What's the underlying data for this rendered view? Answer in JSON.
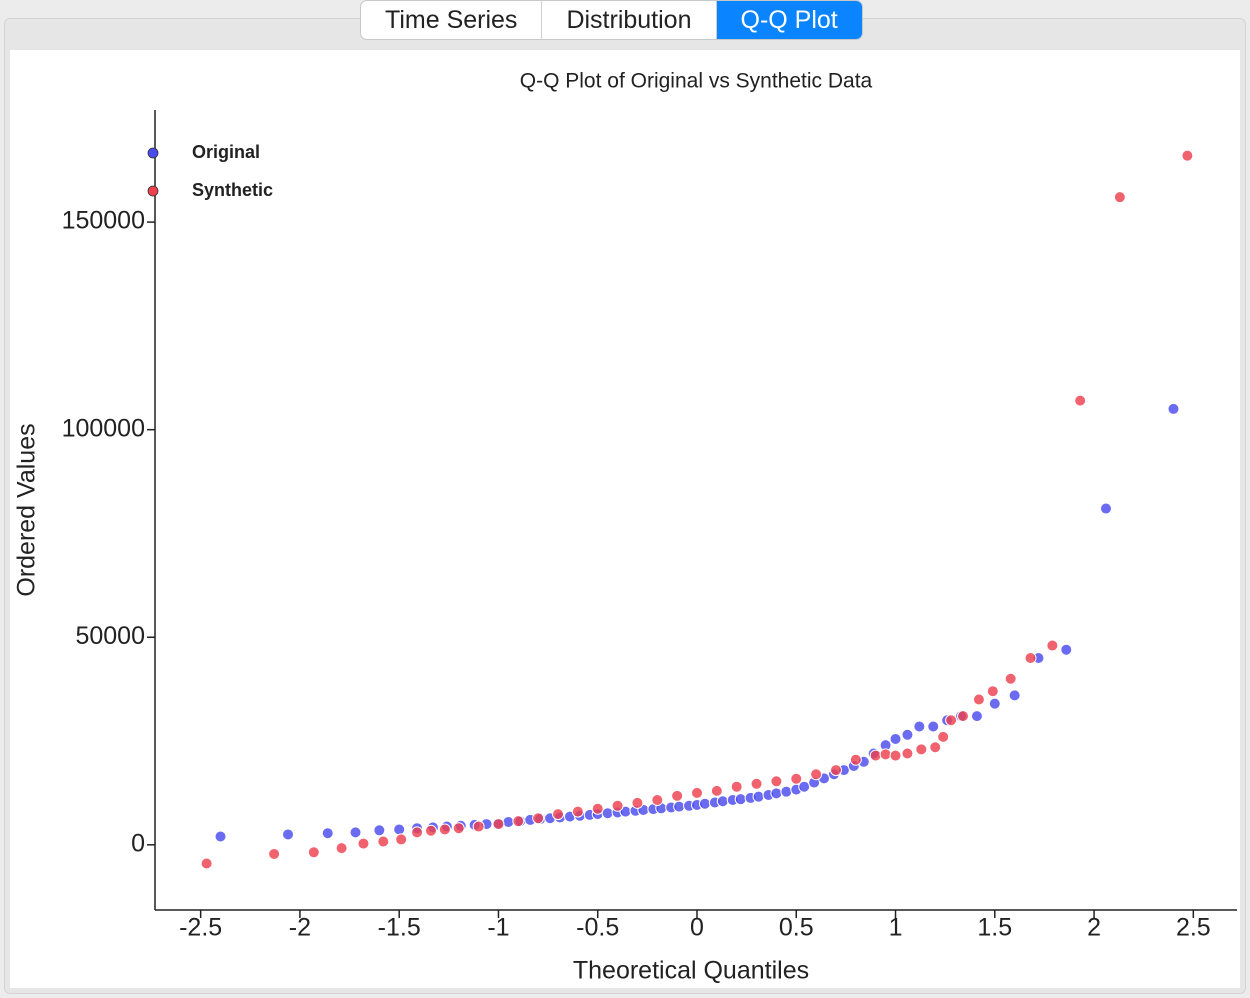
{
  "tabs": [
    "Time Series",
    "Distribution",
    "Q-Q Plot"
  ],
  "active_tab": 2,
  "chart_data": {
    "type": "scatter",
    "title": "Q-Q Plot of Original vs Synthetic Data",
    "x_label": "Theoretical Quantiles",
    "y_label": "Ordered Values",
    "xlim": [
      -2.73,
      2.72
    ],
    "ylim": [
      -15700,
      177000
    ],
    "xticks": [
      -2.5,
      -2,
      -1.5,
      -1,
      -0.5,
      0,
      0.5,
      1,
      1.5,
      2,
      2.5
    ],
    "yticks": [
      0,
      50000,
      100000,
      150000
    ],
    "grid": false,
    "legend": "upper left",
    "series": [
      {
        "name": "Original",
        "color": "#4a4aef",
        "x": [
          -2.4,
          -2.06,
          -1.86,
          -1.72,
          -1.6,
          -1.5,
          -1.41,
          -1.33,
          -1.26,
          -1.19,
          -1.12,
          -1.06,
          -1.0,
          -0.95,
          -0.89,
          -0.84,
          -0.79,
          -0.74,
          -0.69,
          -0.64,
          -0.59,
          -0.54,
          -0.5,
          -0.45,
          -0.4,
          -0.36,
          -0.31,
          -0.27,
          -0.22,
          -0.18,
          -0.13,
          -0.09,
          -0.04,
          0.0,
          0.04,
          0.09,
          0.13,
          0.18,
          0.22,
          0.27,
          0.31,
          0.36,
          0.4,
          0.45,
          0.5,
          0.54,
          0.59,
          0.64,
          0.69,
          0.74,
          0.79,
          0.84,
          0.89,
          0.95,
          1.0,
          1.06,
          1.12,
          1.19,
          1.26,
          1.33,
          1.41,
          1.5,
          1.6,
          1.72,
          1.86,
          2.06,
          2.4
        ],
        "values": [
          2000,
          2500,
          2800,
          3000,
          3500,
          3700,
          4000,
          4200,
          4400,
          4600,
          4800,
          5000,
          5200,
          5500,
          5700,
          6000,
          6200,
          6400,
          6600,
          6800,
          7000,
          7200,
          7400,
          7600,
          7800,
          8000,
          8200,
          8400,
          8600,
          8800,
          9000,
          9200,
          9400,
          9600,
          9900,
          10200,
          10500,
          10800,
          11000,
          11300,
          11600,
          12000,
          12400,
          12800,
          13300,
          14000,
          15000,
          16000,
          17000,
          18000,
          19000,
          20000,
          22000,
          24000,
          25500,
          26500,
          28500,
          28500,
          30000,
          31000,
          31000,
          34000,
          36000,
          45000,
          47000,
          81000,
          105000
        ]
      },
      {
        "name": "Synthetic",
        "color": "#ee3f4f",
        "x": [
          -2.47,
          -2.13,
          -1.93,
          -1.79,
          -1.68,
          -1.58,
          -1.49,
          -1.41,
          -1.34,
          -1.27,
          -1.2,
          -1.1,
          -1.0,
          -0.9,
          -0.8,
          -0.7,
          -0.6,
          -0.5,
          -0.4,
          -0.3,
          -0.2,
          -0.1,
          0.0,
          0.1,
          0.2,
          0.3,
          0.4,
          0.5,
          0.6,
          0.7,
          0.8,
          0.9,
          0.95,
          1.0,
          1.06,
          1.13,
          1.2,
          1.24,
          1.28,
          1.34,
          1.42,
          1.49,
          1.58,
          1.68,
          1.79,
          1.93,
          2.13,
          2.47
        ],
        "values": [
          -4500,
          -2200,
          -1800,
          -800,
          300,
          800,
          1300,
          3000,
          3400,
          3700,
          4000,
          4400,
          5000,
          5700,
          6400,
          7400,
          8000,
          8700,
          9400,
          10100,
          10800,
          11800,
          12500,
          13000,
          14000,
          14700,
          15300,
          15900,
          17000,
          18000,
          20500,
          21500,
          21800,
          21500,
          22000,
          23000,
          23500,
          26000,
          30000,
          31000,
          35000,
          37000,
          40000,
          45000,
          48000,
          107000,
          156000,
          166000
        ]
      }
    ]
  }
}
